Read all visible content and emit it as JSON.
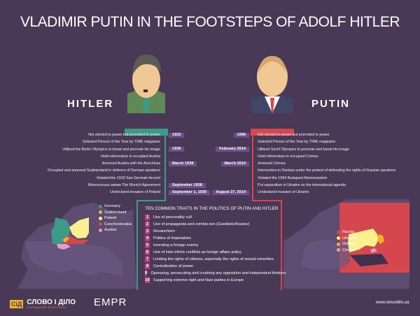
{
  "title": "VLADIMIR PUTIN IN THE FOOTSTEPS OF ADOLF HITLER",
  "colors": {
    "background": "#4a3857",
    "hitler": "#3d9a86",
    "putin": "#d5474e",
    "tag": "#6e4f8c",
    "trait_number": "#b13f83"
  },
  "hitler": {
    "name": "HITLER",
    "events": [
      {
        "text": "Not elected to power but promoted to power",
        "date": "1933"
      },
      {
        "text": "Selected Person of the Year by TIME magazine",
        "date": ""
      },
      {
        "text": "Utilized the Berlin Olympics to boost and promote his image",
        "date": "1936"
      },
      {
        "text": "Held referendum in occupied Austria",
        "date": ""
      },
      {
        "text": "Annexed Austria with the Anschluss",
        "date": "March 1938"
      },
      {
        "text": "Occupied and annexed Sudetenland in defence of German speakers",
        "date": ""
      },
      {
        "text": "Violated the 1919 San Germain Accord",
        "date": ""
      },
      {
        "text": "Мюнхенська змова The Munich Agreement",
        "date": "September 1938"
      },
      {
        "text": "Undeclared invasion of Poland",
        "date": "September 1, 1939"
      }
    ]
  },
  "putin": {
    "name": "PUTIN",
    "events": [
      {
        "text": "Not elected to power but promoted to power",
        "date": "1999"
      },
      {
        "text": "Selected Person of the Year by TIME magazine",
        "date": ""
      },
      {
        "text": "Utilized Sochi Olympics to promote and boost his image",
        "date": "February 2014"
      },
      {
        "text": "Held referendum in occupied Crimea",
        "date": ""
      },
      {
        "text": "Annexed Crimea",
        "date": "March 2014"
      },
      {
        "text": "Intervention in Donbas under the pretext of defending the rights of Russian speakers",
        "date": ""
      },
      {
        "text": "Violated the 1994 Budapest Memorandum",
        "date": ""
      },
      {
        "text": "Put separatism in Ukraine on the international agenda",
        "date": ""
      },
      {
        "text": "Undeclared invasion of Ukraine",
        "date": "August 27, 2014"
      }
    ]
  },
  "traits": {
    "heading": "TEN COMMON TRAITS IN THE POLITICS OF PUTIN AND HITLER",
    "items": [
      "Use of personality cult",
      "Use of propaganda and zombie-ism (Goebbels/Kiselev)",
      "Revanchism",
      "Politics of Imperialism",
      "Inventing a foreign enemy",
      "Use of inter-ethnic conflicts as foreign affairs policy",
      "Limiting the rights of citizens, especially the rights of sexual minorities",
      "Centralization of power",
      "Opressing, persecuting and crushing any opposition and independent thinkers",
      "Supporting extreme-right and Nazi parties in Europe"
    ]
  },
  "left_map_legend": [
    {
      "label": "Germany",
      "color": "#3d9a86"
    },
    {
      "label": "Sudetenland",
      "color": "#f0b323"
    },
    {
      "label": "Poland",
      "color": "#fbf08f"
    },
    {
      "label": "Czechoslovakia",
      "color": "#d5474e"
    },
    {
      "label": "Austria",
      "color": "#e59ccb"
    }
  ],
  "right_map_legend": [
    {
      "label": "Russia",
      "color": "#d5474e"
    },
    {
      "label": "Ukraine",
      "color": "#fbf08f"
    },
    {
      "label": "Donbas",
      "color": "#f0b323"
    },
    {
      "label": "Crimea",
      "color": "#e59ccb"
    }
  ],
  "footer": {
    "logo1": "СЛОВО І ДІЛО",
    "logo1_sub": "НАРОДНИЙ КОНТРОЛЬ",
    "logo1_mark": "СіД",
    "logo2": "EMPR",
    "website": "www.slovoidilo.ua"
  }
}
